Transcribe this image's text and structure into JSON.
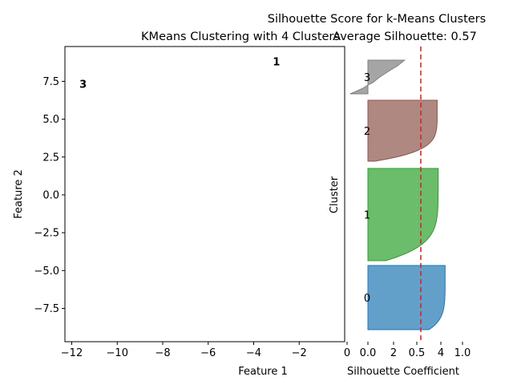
{
  "figure_title": "Silhouette Score for  k-Means Clusters",
  "chart_data": [
    {
      "type": "scatter",
      "title": "KMeans Clustering with 4 Clusters",
      "xlabel": "Feature 1",
      "ylabel": "Feature 2",
      "xlim": [
        -12.3,
        0.0
      ],
      "ylim": [
        -9.7,
        9.8
      ],
      "xticks": [
        -12,
        -10,
        -8,
        -6,
        -4,
        -2
      ],
      "xtick_labels": [
        "−12",
        "−10",
        "−8",
        "−6",
        "−4",
        "−2"
      ],
      "yticks": [
        -7.5,
        -5.0,
        -2.5,
        0.0,
        2.5,
        5.0,
        7.5
      ],
      "ytick_labels": [
        "−7.5",
        "−5.0",
        "−2.5",
        "0.0",
        "2.5",
        "5.0",
        "7.5"
      ],
      "annotations": [
        {
          "text": "1",
          "x": -3.0,
          "y": 8.8
        },
        {
          "text": "3",
          "x": -11.5,
          "y": 7.3
        }
      ],
      "grid": false
    },
    {
      "type": "area",
      "title": "Average Silhouette: 0.57",
      "xlabel": "Silhouette Coefficient",
      "ylabel": "Cluster",
      "xtick_labels": [
        "0",
        "0.0",
        "2",
        "0.5",
        "4",
        "1.0"
      ],
      "average_silhouette": 0.57,
      "average_line_color": "#d62728",
      "grid": false,
      "clusters": [
        {
          "label": "0",
          "color": "#1f77b4",
          "max": 0.78,
          "tail": 0.6
        },
        {
          "label": "1",
          "color": "#2ca02c",
          "max": 0.71,
          "tail": 0.12
        },
        {
          "label": "2",
          "color": "#8c564b",
          "max": 0.7,
          "tail": 0.0
        },
        {
          "label": "3",
          "color": "#7f7f7f",
          "max": 0.37,
          "tail": -0.18
        }
      ]
    }
  ]
}
